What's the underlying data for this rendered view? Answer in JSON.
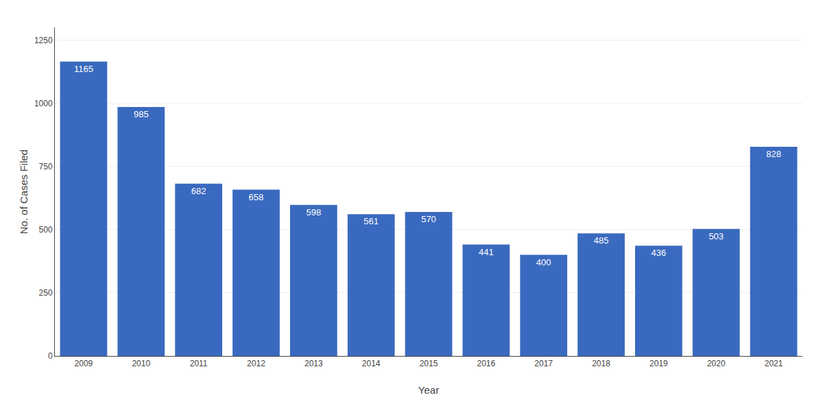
{
  "chart_data": {
    "type": "bar",
    "categories": [
      "2009",
      "2010",
      "2011",
      "2012",
      "2013",
      "2014",
      "2015",
      "2016",
      "2017",
      "2018",
      "2019",
      "2020",
      "2021"
    ],
    "values": [
      1165,
      985,
      682,
      658,
      598,
      561,
      570,
      441,
      400,
      485,
      436,
      503,
      828
    ],
    "color": "#3a6abf",
    "xlabel": "Year",
    "ylabel": "No. of Cases Filed",
    "ylim": [
      0,
      1300
    ],
    "yticks": [
      0,
      250,
      500,
      750,
      1000,
      1250
    ],
    "grid": true,
    "data_labels": true
  }
}
